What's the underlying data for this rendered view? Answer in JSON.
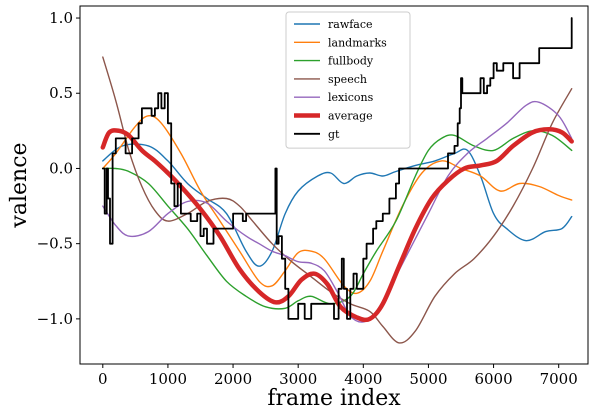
{
  "chart_data": {
    "type": "line",
    "xlabel": "frame index",
    "ylabel": "valence",
    "xlim": [
      -350,
      7450
    ],
    "ylim": [
      -1.3,
      1.08
    ],
    "xticks": [
      0,
      1000,
      2000,
      3000,
      4000,
      5000,
      6000,
      7000
    ],
    "yticks": [
      -1.0,
      -0.5,
      0.0,
      0.5,
      1.0
    ],
    "xtick_labels": [
      "0",
      "1000",
      "2000",
      "3000",
      "4000",
      "5000",
      "6000",
      "7000"
    ],
    "ytick_labels": [
      "−1.0",
      "−0.5",
      "0.0",
      "0.5",
      "1.0"
    ],
    "grid": false,
    "legend_position": "top-center",
    "series": [
      {
        "name": "rawface",
        "color": "#1f77b4",
        "style": "smooth",
        "points": [
          [
            0,
            0.05
          ],
          [
            300,
            0.15
          ],
          [
            700,
            0.15
          ],
          [
            1000,
            0.05
          ],
          [
            1300,
            -0.1
          ],
          [
            1600,
            -0.2
          ],
          [
            1900,
            -0.3
          ],
          [
            2200,
            -0.55
          ],
          [
            2400,
            -0.65
          ],
          [
            2600,
            -0.55
          ],
          [
            2800,
            -0.3
          ],
          [
            3000,
            -0.15
          ],
          [
            3300,
            -0.05
          ],
          [
            3500,
            -0.03
          ],
          [
            3700,
            -0.1
          ],
          [
            3900,
            -0.05
          ],
          [
            4100,
            -0.03
          ],
          [
            4300,
            -0.05
          ],
          [
            4500,
            -0.02
          ],
          [
            4800,
            0.02
          ],
          [
            5100,
            0.05
          ],
          [
            5400,
            0.1
          ],
          [
            5600,
            0.12
          ],
          [
            5800,
            -0.05
          ],
          [
            6000,
            -0.3
          ],
          [
            6200,
            -0.4
          ],
          [
            6500,
            -0.48
          ],
          [
            6800,
            -0.42
          ],
          [
            7050,
            -0.4
          ],
          [
            7200,
            -0.32
          ]
        ]
      },
      {
        "name": "landmarks",
        "color": "#ff7f0e",
        "style": "smooth",
        "points": [
          [
            0,
            0.0
          ],
          [
            200,
            0.1
          ],
          [
            500,
            0.28
          ],
          [
            700,
            0.35
          ],
          [
            900,
            0.3
          ],
          [
            1200,
            0.1
          ],
          [
            1500,
            -0.15
          ],
          [
            1800,
            -0.35
          ],
          [
            2100,
            -0.55
          ],
          [
            2400,
            -0.75
          ],
          [
            2600,
            -0.78
          ],
          [
            2800,
            -0.68
          ],
          [
            3000,
            -0.56
          ],
          [
            3200,
            -0.55
          ],
          [
            3400,
            -0.6
          ],
          [
            3700,
            -0.78
          ],
          [
            3900,
            -0.83
          ],
          [
            4100,
            -0.75
          ],
          [
            4300,
            -0.55
          ],
          [
            4600,
            -0.25
          ],
          [
            4900,
            -0.03
          ],
          [
            5200,
            0.05
          ],
          [
            5500,
            0.0
          ],
          [
            5800,
            -0.05
          ],
          [
            6100,
            -0.15
          ],
          [
            6400,
            -0.1
          ],
          [
            6700,
            -0.12
          ],
          [
            7000,
            -0.18
          ],
          [
            7200,
            -0.21
          ]
        ]
      },
      {
        "name": "fullbody",
        "color": "#2ca02c",
        "style": "smooth",
        "points": [
          [
            0,
            0.0
          ],
          [
            200,
            0.0
          ],
          [
            400,
            -0.02
          ],
          [
            700,
            -0.1
          ],
          [
            1000,
            -0.25
          ],
          [
            1300,
            -0.4
          ],
          [
            1600,
            -0.58
          ],
          [
            1900,
            -0.75
          ],
          [
            2200,
            -0.85
          ],
          [
            2500,
            -0.92
          ],
          [
            2800,
            -0.93
          ],
          [
            3000,
            -0.88
          ],
          [
            3200,
            -0.85
          ],
          [
            3500,
            -0.9
          ],
          [
            3800,
            -0.85
          ],
          [
            4000,
            -0.7
          ],
          [
            4200,
            -0.55
          ],
          [
            4500,
            -0.35
          ],
          [
            4800,
            -0.05
          ],
          [
            5000,
            0.12
          ],
          [
            5200,
            0.2
          ],
          [
            5400,
            0.22
          ],
          [
            5700,
            0.15
          ],
          [
            6000,
            0.12
          ],
          [
            6300,
            0.2
          ],
          [
            6600,
            0.25
          ],
          [
            6900,
            0.22
          ],
          [
            7200,
            0.12
          ]
        ]
      },
      {
        "name": "speech",
        "color": "#8c564b",
        "style": "smooth",
        "points": [
          [
            0,
            0.74
          ],
          [
            200,
            0.45
          ],
          [
            400,
            0.12
          ],
          [
            600,
            -0.12
          ],
          [
            800,
            -0.28
          ],
          [
            1000,
            -0.35
          ],
          [
            1300,
            -0.3
          ],
          [
            1600,
            -0.22
          ],
          [
            1900,
            -0.2
          ],
          [
            2100,
            -0.25
          ],
          [
            2300,
            -0.35
          ],
          [
            2600,
            -0.5
          ],
          [
            2900,
            -0.62
          ],
          [
            3200,
            -0.72
          ],
          [
            3500,
            -0.82
          ],
          [
            3800,
            -0.9
          ],
          [
            4100,
            -0.95
          ],
          [
            4300,
            -1.05
          ],
          [
            4550,
            -1.16
          ],
          [
            4800,
            -1.08
          ],
          [
            5100,
            -0.85
          ],
          [
            5400,
            -0.7
          ],
          [
            5700,
            -0.6
          ],
          [
            6000,
            -0.45
          ],
          [
            6300,
            -0.25
          ],
          [
            6600,
            0.0
          ],
          [
            6900,
            0.3
          ],
          [
            7200,
            0.53
          ]
        ]
      },
      {
        "name": "lexicons",
        "color": "#9467bd",
        "style": "smooth",
        "points": [
          [
            0,
            -0.25
          ],
          [
            200,
            -0.38
          ],
          [
            400,
            -0.45
          ],
          [
            700,
            -0.42
          ],
          [
            1000,
            -0.3
          ],
          [
            1300,
            -0.22
          ],
          [
            1600,
            -0.23
          ],
          [
            1900,
            -0.35
          ],
          [
            2200,
            -0.45
          ],
          [
            2400,
            -0.5
          ],
          [
            2600,
            -0.55
          ],
          [
            2800,
            -0.58
          ],
          [
            3000,
            -0.62
          ],
          [
            3200,
            -0.63
          ],
          [
            3400,
            -0.68
          ],
          [
            3600,
            -0.82
          ],
          [
            3800,
            -0.98
          ],
          [
            4000,
            -1.02
          ],
          [
            4200,
            -0.95
          ],
          [
            4400,
            -0.8
          ],
          [
            4700,
            -0.55
          ],
          [
            5000,
            -0.3
          ],
          [
            5300,
            -0.05
          ],
          [
            5600,
            0.1
          ],
          [
            5900,
            0.2
          ],
          [
            6200,
            0.3
          ],
          [
            6500,
            0.42
          ],
          [
            6700,
            0.44
          ],
          [
            7000,
            0.35
          ],
          [
            7200,
            0.2
          ]
        ]
      },
      {
        "name": "average",
        "color": "#d62728",
        "style": "smooth",
        "width": 4.5,
        "points": [
          [
            0,
            0.14
          ],
          [
            100,
            0.24
          ],
          [
            250,
            0.25
          ],
          [
            400,
            0.22
          ],
          [
            600,
            0.12
          ],
          [
            800,
            0.05
          ],
          [
            1000,
            -0.03
          ],
          [
            1200,
            -0.12
          ],
          [
            1500,
            -0.27
          ],
          [
            1800,
            -0.45
          ],
          [
            2100,
            -0.67
          ],
          [
            2400,
            -0.82
          ],
          [
            2650,
            -0.89
          ],
          [
            2850,
            -0.85
          ],
          [
            3050,
            -0.74
          ],
          [
            3250,
            -0.7
          ],
          [
            3450,
            -0.77
          ],
          [
            3650,
            -0.92
          ],
          [
            3900,
            -0.99
          ],
          [
            4100,
            -1.0
          ],
          [
            4300,
            -0.9
          ],
          [
            4550,
            -0.65
          ],
          [
            4800,
            -0.4
          ],
          [
            5050,
            -0.2
          ],
          [
            5300,
            -0.08
          ],
          [
            5550,
            0.0
          ],
          [
            5800,
            0.02
          ],
          [
            6050,
            0.05
          ],
          [
            6300,
            0.15
          ],
          [
            6600,
            0.24
          ],
          [
            6850,
            0.26
          ],
          [
            7050,
            0.24
          ],
          [
            7200,
            0.18
          ]
        ]
      },
      {
        "name": "gt",
        "color": "#000000",
        "style": "step",
        "points": [
          [
            0,
            0.0
          ],
          [
            30,
            -0.3
          ],
          [
            60,
            0.0
          ],
          [
            80,
            -0.2
          ],
          [
            110,
            -0.5
          ],
          [
            150,
            0.1
          ],
          [
            200,
            0.2
          ],
          [
            350,
            0.1
          ],
          [
            450,
            0.2
          ],
          [
            550,
            0.3
          ],
          [
            600,
            0.4
          ],
          [
            750,
            0.35
          ],
          [
            800,
            0.4
          ],
          [
            850,
            0.5
          ],
          [
            900,
            0.4
          ],
          [
            950,
            0.5
          ],
          [
            1000,
            0.3
          ],
          [
            1050,
            -0.1
          ],
          [
            1100,
            -0.25
          ],
          [
            1150,
            -0.1
          ],
          [
            1200,
            -0.3
          ],
          [
            1350,
            -0.35
          ],
          [
            1450,
            -0.3
          ],
          [
            1500,
            -0.45
          ],
          [
            1550,
            -0.4
          ],
          [
            1600,
            -0.5
          ],
          [
            1700,
            -0.4
          ],
          [
            2000,
            -0.3
          ],
          [
            2150,
            -0.35
          ],
          [
            2200,
            -0.3
          ],
          [
            2650,
            0.0
          ],
          [
            2670,
            -0.5
          ],
          [
            2700,
            -0.45
          ],
          [
            2750,
            -0.6
          ],
          [
            2800,
            -0.8
          ],
          [
            2850,
            -1.0
          ],
          [
            3000,
            -0.9
          ],
          [
            3100,
            -1.0
          ],
          [
            3200,
            -0.9
          ],
          [
            3450,
            -0.9
          ],
          [
            3550,
            -1.0
          ],
          [
            3620,
            -0.8
          ],
          [
            3670,
            -0.6
          ],
          [
            3700,
            -0.8
          ],
          [
            3750,
            -1.0
          ],
          [
            3800,
            -0.8
          ],
          [
            3850,
            -0.7
          ],
          [
            3900,
            -0.8
          ],
          [
            4000,
            -0.6
          ],
          [
            4050,
            -0.5
          ],
          [
            4150,
            -0.4
          ],
          [
            4200,
            -0.35
          ],
          [
            4300,
            -0.3
          ],
          [
            4400,
            -0.2
          ],
          [
            4500,
            -0.1
          ],
          [
            4550,
            0.0
          ],
          [
            4700,
            0.0
          ],
          [
            5000,
            0.0
          ],
          [
            5200,
            0.0
          ],
          [
            5300,
            0.1
          ],
          [
            5400,
            0.15
          ],
          [
            5450,
            0.3
          ],
          [
            5480,
            0.4
          ],
          [
            5500,
            0.6
          ],
          [
            5520,
            0.5
          ],
          [
            5700,
            0.5
          ],
          [
            5800,
            0.6
          ],
          [
            5850,
            0.5
          ],
          [
            5900,
            0.55
          ],
          [
            5950,
            0.6
          ],
          [
            6000,
            0.7
          ],
          [
            6050,
            0.65
          ],
          [
            6150,
            0.7
          ],
          [
            6300,
            0.6
          ],
          [
            6400,
            0.7
          ],
          [
            6700,
            0.8
          ],
          [
            7000,
            0.8
          ],
          [
            7150,
            0.8
          ],
          [
            7200,
            1.0
          ]
        ]
      }
    ]
  }
}
